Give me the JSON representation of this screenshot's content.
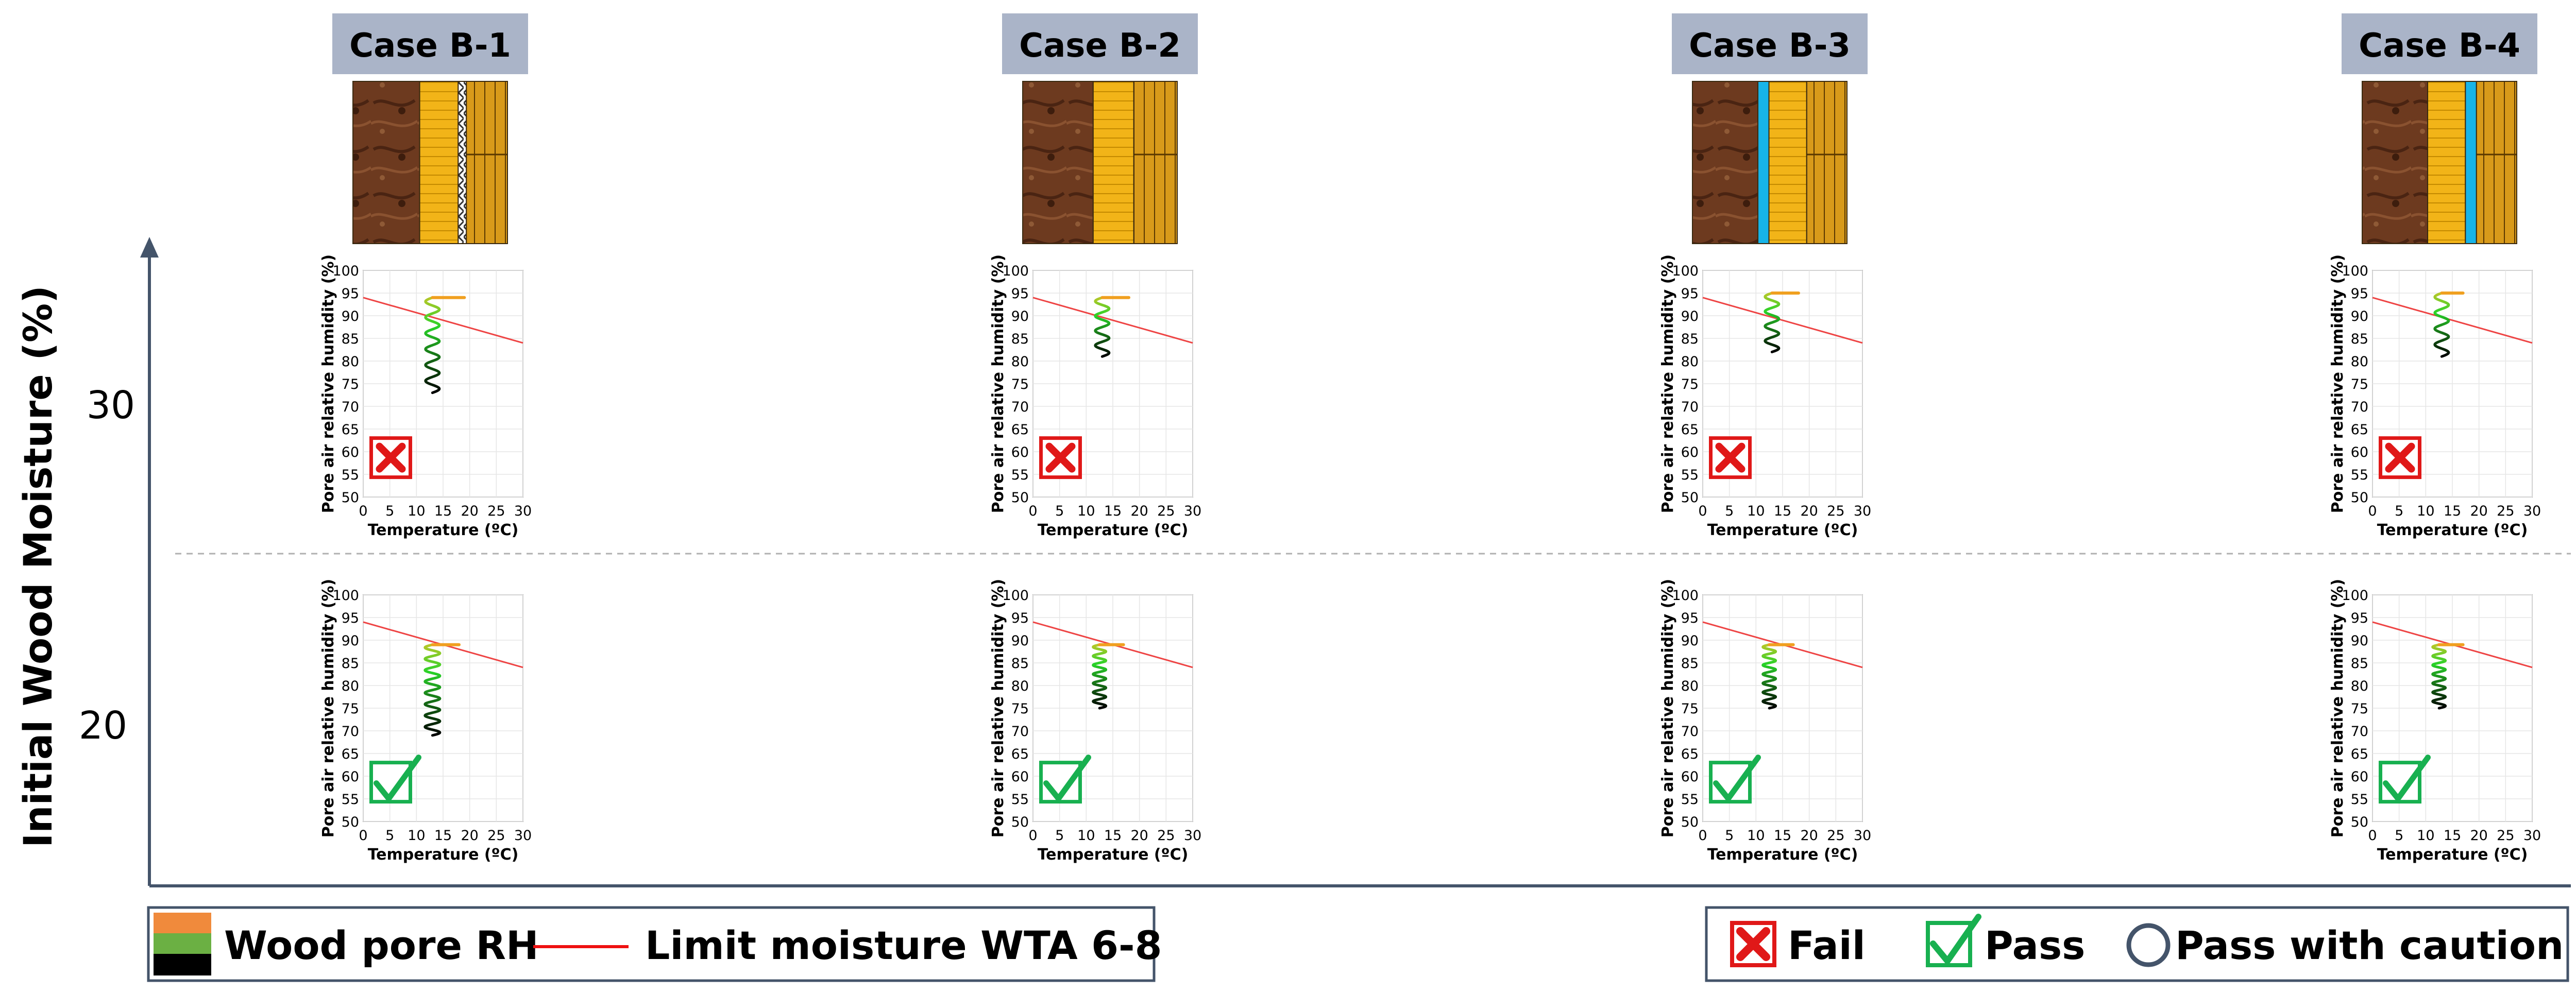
{
  "y_axis": {
    "label": "Initial Wood Moisture (%)",
    "levels": [
      "30",
      "20"
    ]
  },
  "cases": [
    {
      "label": "Case B-1",
      "layers": [
        "wood",
        "insulation",
        "membrane",
        "boards"
      ]
    },
    {
      "label": "Case B-2",
      "layers": [
        "wood",
        "insulation",
        "boards"
      ]
    },
    {
      "label": "Case B-3",
      "layers": [
        "wood",
        "blue-barrier",
        "insulation",
        "boards"
      ]
    },
    {
      "label": "Case B-4",
      "layers": [
        "wood",
        "insulation",
        "blue-barrier",
        "boards"
      ]
    }
  ],
  "chart_data": {
    "type": "line",
    "xlabel": "Temperature (ºC)",
    "ylabel": "Pore air relative humidity (%)",
    "xlim": [
      0,
      30
    ],
    "ylim": [
      50,
      100
    ],
    "xticks": [
      "0",
      "5",
      "10",
      "15",
      "20",
      "25",
      "30"
    ],
    "yticks": [
      "50",
      "55",
      "60",
      "65",
      "70",
      "75",
      "80",
      "85",
      "90",
      "95",
      "100"
    ],
    "limit_line": {
      "name": "Limit moisture WTA 6-8",
      "x": [
        0,
        30
      ],
      "y": [
        94,
        84
      ],
      "color": "#ee4444"
    },
    "panels": [
      {
        "row": 0,
        "case": 0,
        "status": "fail",
        "spiral": {
          "x_center": 13,
          "x_amp": 1.3,
          "rh_start": 73,
          "rh_end": 94,
          "turns": 6,
          "tail_x_end": 19
        }
      },
      {
        "row": 0,
        "case": 1,
        "status": "fail",
        "spiral": {
          "x_center": 13,
          "x_amp": 1.3,
          "rh_start": 81,
          "rh_end": 94,
          "turns": 4,
          "tail_x_end": 18
        }
      },
      {
        "row": 0,
        "case": 2,
        "status": "fail",
        "spiral": {
          "x_center": 13,
          "x_amp": 1.3,
          "rh_start": 82,
          "rh_end": 95,
          "turns": 4,
          "tail_x_end": 18
        }
      },
      {
        "row": 0,
        "case": 3,
        "status": "fail",
        "spiral": {
          "x_center": 13,
          "x_amp": 1.3,
          "rh_start": 81,
          "rh_end": 95,
          "turns": 4,
          "tail_x_end": 17
        }
      },
      {
        "row": 1,
        "case": 0,
        "status": "pass",
        "spiral": {
          "x_center": 13,
          "x_amp": 1.4,
          "rh_start": 69,
          "rh_end": 89,
          "turns": 8,
          "tail_x_end": 18
        }
      },
      {
        "row": 1,
        "case": 1,
        "status": "pass",
        "spiral": {
          "x_center": 12.5,
          "x_amp": 1.2,
          "rh_start": 75,
          "rh_end": 89,
          "turns": 7,
          "tail_x_end": 17
        }
      },
      {
        "row": 1,
        "case": 2,
        "status": "pass",
        "spiral": {
          "x_center": 12.5,
          "x_amp": 1.2,
          "rh_start": 75,
          "rh_end": 89,
          "turns": 7,
          "tail_x_end": 17
        }
      },
      {
        "row": 1,
        "case": 3,
        "status": "pass",
        "spiral": {
          "x_center": 12.5,
          "x_amp": 1.2,
          "rh_start": 75,
          "rh_end": 89,
          "turns": 7,
          "tail_x_end": 17
        }
      }
    ]
  },
  "legend_left": {
    "rh_label": "Wood pore RH",
    "limit_label": "Limit moisture WTA 6-8",
    "swatch_colors": [
      "#f08a3c",
      "#6bb043",
      "#000000"
    ],
    "limit_color": "#ee1111"
  },
  "legend_right": {
    "fail": "Fail",
    "pass": "Pass",
    "caution": "Pass with caution",
    "fail_color": "#e01818",
    "pass_color": "#18b050",
    "caution_color": "#44546a"
  }
}
